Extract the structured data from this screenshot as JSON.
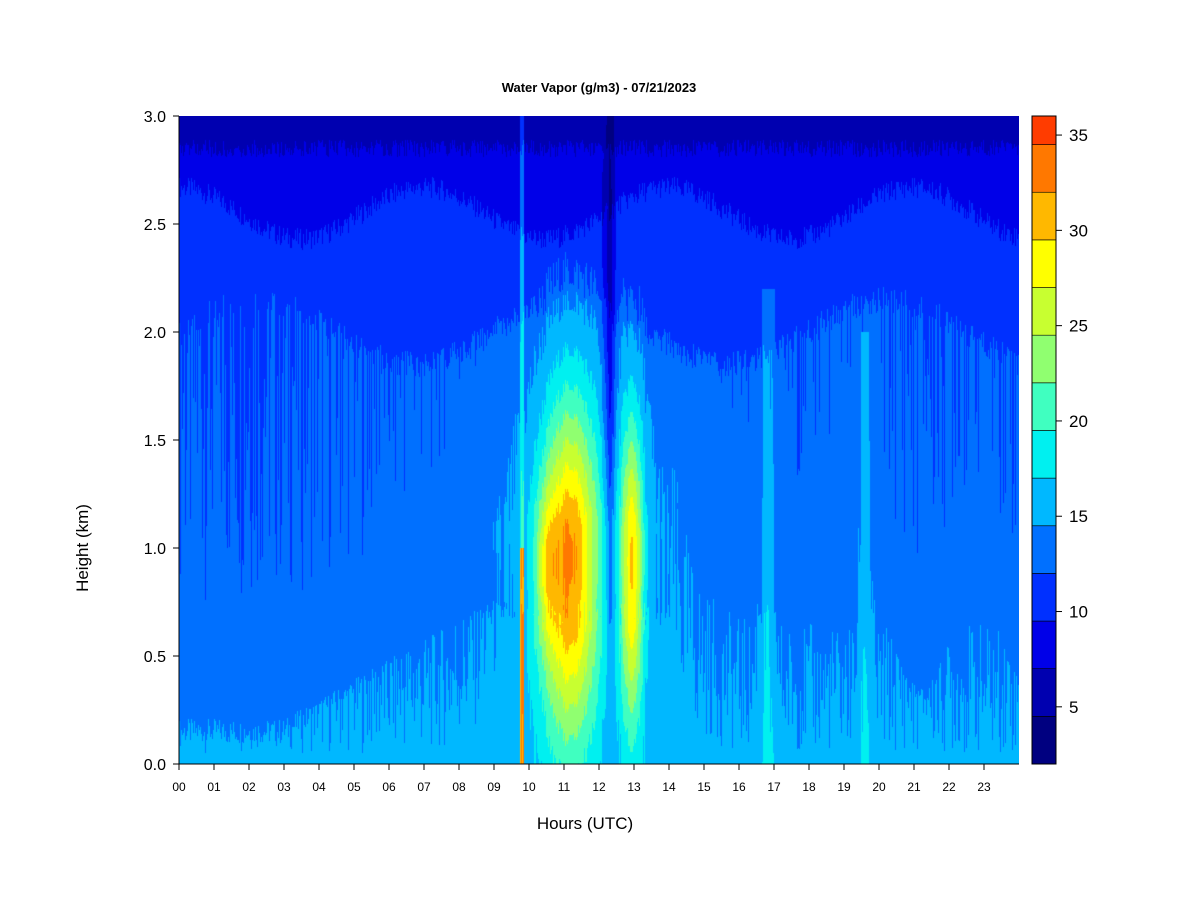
{
  "chart_data": {
    "type": "heatmap",
    "title": "Water Vapor (g/m3) - 07/21/2023",
    "xlabel": "Hours (UTC)",
    "ylabel": "Height (km)",
    "xlim": [
      0,
      24
    ],
    "ylim": [
      0,
      3.0
    ],
    "x_ticks": [
      "00",
      "01",
      "02",
      "03",
      "04",
      "05",
      "06",
      "07",
      "08",
      "09",
      "10",
      "11",
      "12",
      "13",
      "14",
      "15",
      "16",
      "17",
      "18",
      "19",
      "20",
      "21",
      "22",
      "23"
    ],
    "y_ticks": [
      "0.0",
      "0.5",
      "1.0",
      "1.5",
      "2.0",
      "2.5",
      "3.0"
    ],
    "colorbar": {
      "range": [
        2,
        36
      ],
      "levels": [
        2,
        4.5,
        7,
        9.5,
        12,
        14.5,
        17,
        19.5,
        22,
        24.5,
        27,
        29.5,
        32,
        34.5,
        36
      ],
      "colors": [
        "#000080",
        "#0000B0",
        "#0000E8",
        "#0030FF",
        "#0070FF",
        "#00B8FF",
        "#00F0F0",
        "#40FFC0",
        "#90FF70",
        "#C8FF30",
        "#FFFF00",
        "#FFB800",
        "#FF7800",
        "#FF3C00",
        "#E00000",
        "#800000"
      ],
      "tick_values": [
        5,
        10,
        15,
        20,
        25,
        30,
        35
      ],
      "tick_labels": [
        "5",
        "10",
        "15",
        "20",
        "25",
        "30",
        "35"
      ]
    },
    "features": {
      "background_low_level_g_m3": 13,
      "upper_level_g_m3": 6,
      "moist_core_hours": [
        10.3,
        12.0
      ],
      "secondary_core_hours": [
        12.6,
        13.3
      ],
      "core_height_km": 0.9,
      "core_peak_g_m3": 30
    }
  }
}
